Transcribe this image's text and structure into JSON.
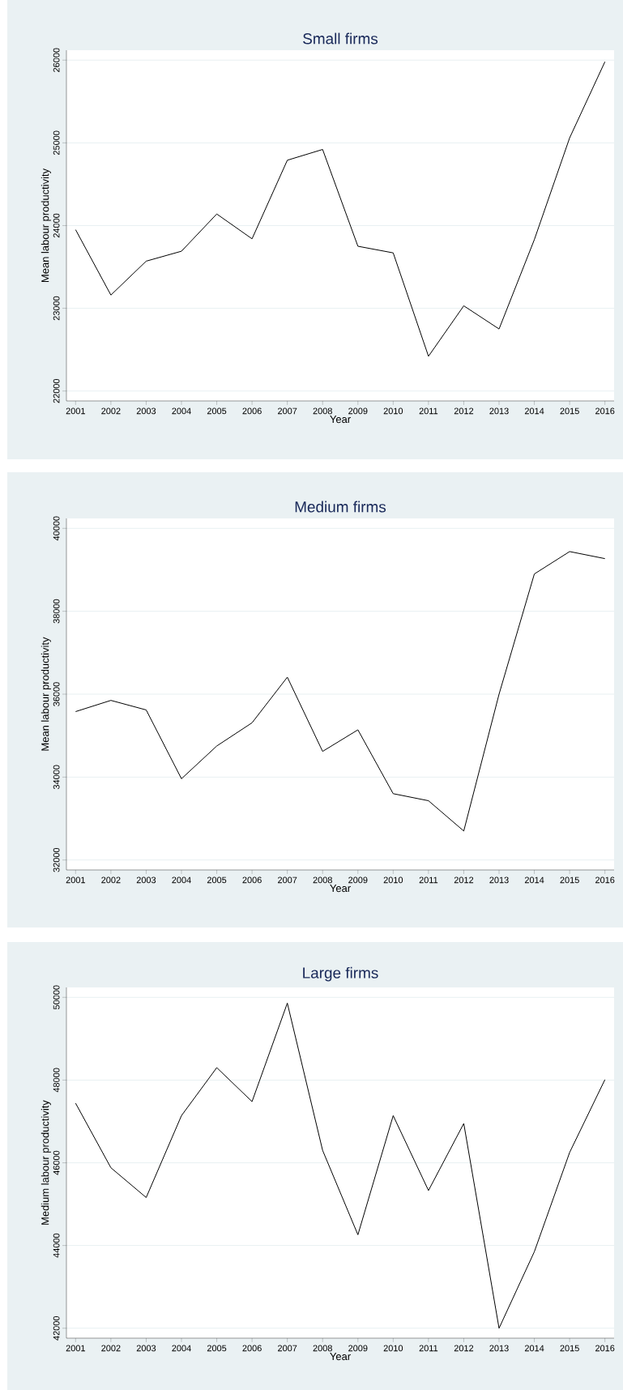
{
  "chart_data": [
    {
      "type": "line",
      "title": "Small firms",
      "xlabel": "Year",
      "ylabel": "Mean labour productivity",
      "categories": [
        "2001",
        "2002",
        "2003",
        "2004",
        "2005",
        "2006",
        "2007",
        "2008",
        "2009",
        "2010",
        "2011",
        "2012",
        "2013",
        "2014",
        "2015",
        "2016"
      ],
      "values": [
        23950,
        23160,
        23570,
        23690,
        24140,
        23840,
        24790,
        24920,
        23750,
        23670,
        22420,
        23030,
        22750,
        23830,
        25060,
        25980
      ],
      "color": "#000000",
      "ylim": [
        21880,
        26120
      ],
      "yticks": [
        22000,
        23000,
        24000,
        25000,
        26000
      ],
      "grid": "y"
    },
    {
      "type": "line",
      "title": "Medium firms",
      "xlabel": "Year",
      "ylabel": "Mean labour productivity",
      "categories": [
        "2001",
        "2002",
        "2003",
        "2004",
        "2005",
        "2006",
        "2007",
        "2008",
        "2009",
        "2010",
        "2011",
        "2012",
        "2013",
        "2014",
        "2015",
        "2016"
      ],
      "values": [
        35580,
        35850,
        35620,
        33960,
        34750,
        35310,
        36410,
        34620,
        35140,
        33600,
        33430,
        32700,
        36000,
        38900,
        39440,
        39270
      ],
      "color": "#000000",
      "ylim": [
        31760,
        40240
      ],
      "yticks": [
        32000,
        34000,
        36000,
        38000,
        40000
      ],
      "grid": "y"
    },
    {
      "type": "line",
      "title": "Large firms",
      "xlabel": "Year",
      "ylabel": "Medium labour productivity",
      "categories": [
        "2001",
        "2002",
        "2003",
        "2004",
        "2005",
        "2006",
        "2007",
        "2008",
        "2009",
        "2010",
        "2011",
        "2012",
        "2013",
        "2014",
        "2015",
        "2016"
      ],
      "values": [
        47440,
        45880,
        45160,
        47140,
        48300,
        47480,
        49860,
        46300,
        44260,
        47140,
        45330,
        46950,
        42000,
        43850,
        46250,
        48010
      ],
      "color": "#000000",
      "ylim": [
        41760,
        50240
      ],
      "yticks": [
        42000,
        44000,
        46000,
        48000,
        50000
      ],
      "grid": "y"
    }
  ]
}
